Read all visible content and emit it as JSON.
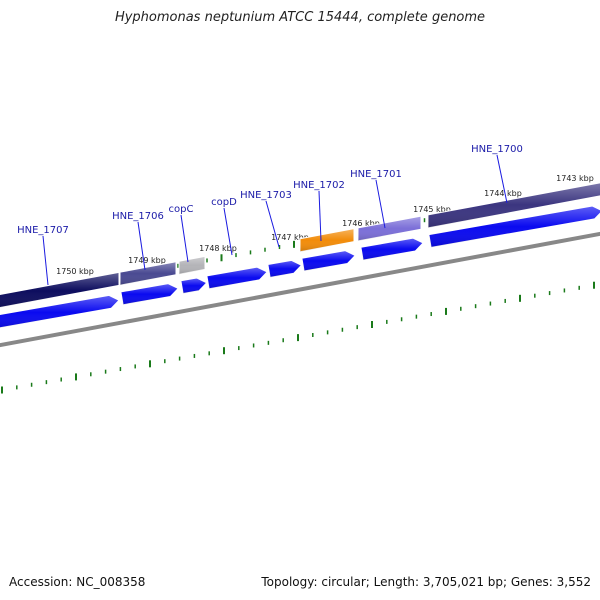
{
  "title": "Hyphomonas neptunium ATCC 15444, complete genome",
  "footer": {
    "accession": "Accession: NC_008358",
    "topology": "Topology: circular; Length: 3,705,021 bp; Genes: 3,552"
  },
  "colors": {
    "cds": "#0a0af0",
    "tick": "#1a7a1a",
    "backbone": "#888888",
    "label": "#1a1aa8",
    "orange": "#f28c0a",
    "grey": "#b4b4b8",
    "navy": "#0d0d5e",
    "slate": "#4a4a92",
    "lavender": "#7b6fd8",
    "indigo": "#3b3580"
  },
  "scale_labels": [
    "1743 kbp",
    "1744 kbp",
    "1745 kbp",
    "1746 kbp",
    "1747 kbp",
    "1748 kbp",
    "1749 kbp",
    "1750 kbp"
  ],
  "genes": [
    {
      "label": "HNE_1707",
      "color_key": "navy"
    },
    {
      "label": "HNE_1706",
      "color_key": "slate"
    },
    {
      "label": "copC",
      "color_key": "grey"
    },
    {
      "label": "copD",
      "color_key": null
    },
    {
      "label": "HNE_1703",
      "color_key": null
    },
    {
      "label": "HNE_1702",
      "color_key": "orange"
    },
    {
      "label": "HNE_1701",
      "color_key": "lavender"
    },
    {
      "label": "HNE_1700",
      "color_key": "indigo"
    }
  ]
}
